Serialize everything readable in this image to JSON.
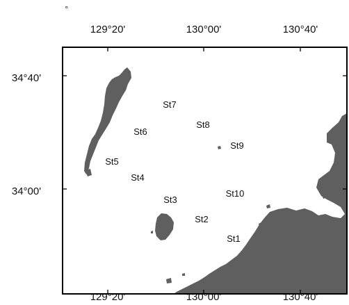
{
  "map": {
    "corner_mark": "°",
    "land_color": "#5f5f5f",
    "frame_color": "#000000",
    "x_ticks_top": [
      "129°20'",
      "130°00'",
      "130°40'"
    ],
    "x_ticks_bottom": [
      "129°20'",
      "130°00'",
      "130°40'"
    ],
    "y_ticks": [
      "34°40'",
      "34°00'"
    ],
    "stations": [
      "St1",
      "St2",
      "St3",
      "St4",
      "St5",
      "St6",
      "St7",
      "St8",
      "St9",
      "St10"
    ]
  }
}
